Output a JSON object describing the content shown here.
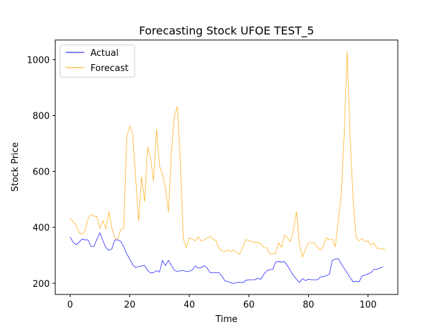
{
  "chart_data": {
    "type": "line",
    "title": "Forecasting Stock UFOE TEST_5",
    "xlabel": "Time",
    "ylabel": "Stock Price",
    "xlim": [
      -5,
      110
    ],
    "ylim": [
      160,
      1070
    ],
    "xticks": [
      0,
      20,
      40,
      60,
      80,
      100
    ],
    "yticks": [
      200,
      400,
      600,
      800,
      1000
    ],
    "grid": false,
    "legend_position": "top-left",
    "colors": {
      "Actual": "#0000ff",
      "Forecast": "#ffa500"
    },
    "series": [
      {
        "name": "Actual",
        "values": [
          365,
          347,
          338,
          347,
          358,
          355,
          355,
          332,
          332,
          358,
          380,
          352,
          328,
          318,
          323,
          355,
          355,
          350,
          330,
          305,
          287,
          266,
          256,
          260,
          262,
          264,
          246,
          237,
          238,
          245,
          240,
          282,
          263,
          282,
          264,
          247,
          242,
          245,
          245,
          242,
          243,
          247,
          262,
          254,
          256,
          263,
          255,
          238,
          238,
          238,
          238,
          225,
          208,
          206,
          202,
          199,
          203,
          204,
          202,
          211,
          212,
          212,
          212,
          218,
          214,
          232,
          244,
          249,
          249,
          276,
          277,
          276,
          277,
          262,
          244,
          228,
          214,
          203,
          216,
          210,
          214,
          212,
          212,
          212,
          222,
          224,
          227,
          232,
          282,
          286,
          288,
          270,
          253,
          237,
          220,
          205,
          207,
          205,
          226,
          229,
          234,
          238,
          250,
          250,
          254,
          259
        ]
      },
      {
        "name": "Forecast",
        "values": [
          433,
          420,
          408,
          382,
          375,
          388,
          430,
          446,
          440,
          440,
          395,
          424,
          395,
          456,
          398,
          362,
          358,
          392,
          398,
          722,
          762,
          735,
          577,
          422,
          581,
          492,
          687,
          648,
          565,
          751,
          620,
          590,
          541,
          455,
          671,
          797,
          832,
          635,
          358,
          328,
          363,
          359,
          352,
          366,
          352,
          355,
          363,
          367,
          358,
          352,
          325,
          316,
          313,
          320,
          313,
          319,
          310,
          304,
          330,
          356,
          352,
          348,
          346,
          346,
          342,
          328,
          327,
          305,
          306,
          308,
          345,
          329,
          373,
          361,
          349,
          392,
          456,
          338,
          294,
          321,
          345,
          345,
          343,
          330,
          319,
          330,
          363,
          356,
          357,
          330,
          425,
          512,
          734,
          1028,
          720,
          500,
          362,
          352,
          360,
          348,
          352,
          336,
          345,
          325,
          325,
          322,
          320
        ]
      }
    ]
  }
}
